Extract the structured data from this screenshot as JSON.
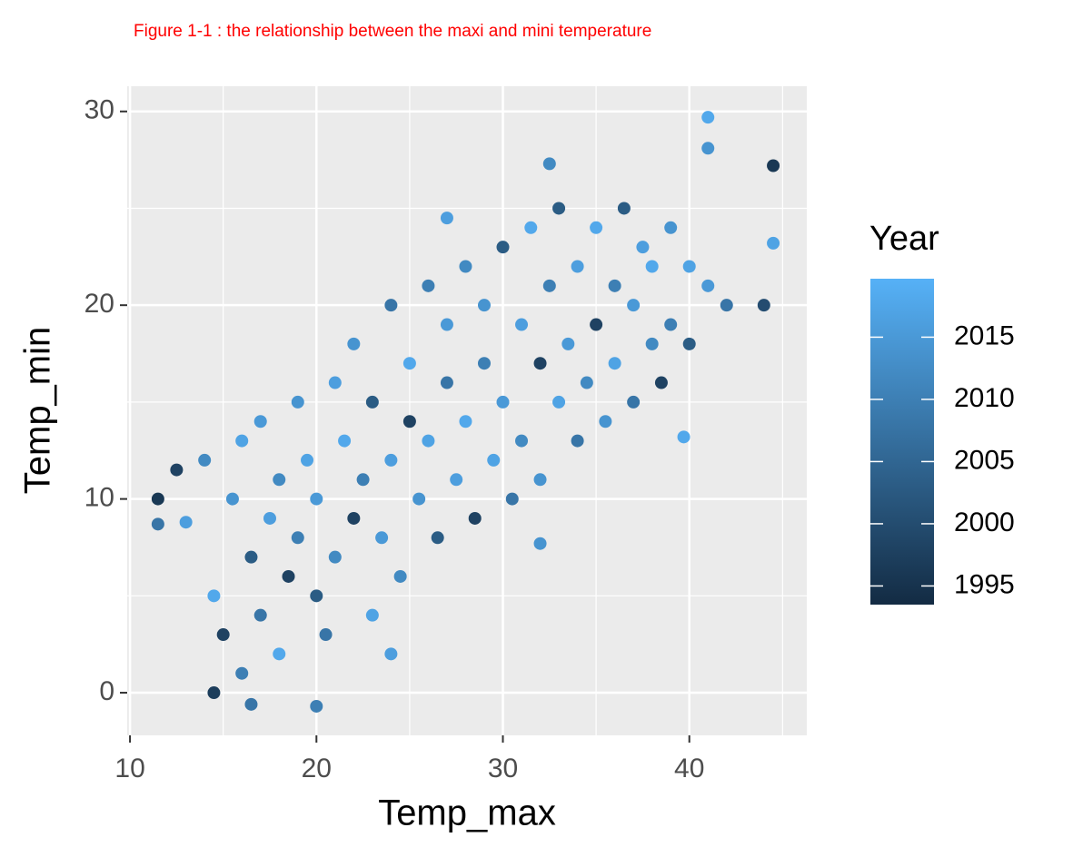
{
  "chart_data": {
    "type": "scatter",
    "title": "Figure 1-1 : the relationship between the maxi and mini temperature",
    "x_label": "Temp_max",
    "y_label": "Temp_min",
    "legend_title": "Year",
    "xlim": [
      9.85,
      46.3
    ],
    "ylim": [
      -2.2,
      31.3
    ],
    "xticks": [
      10,
      20,
      30,
      40
    ],
    "yticks": [
      0,
      10,
      20,
      30
    ],
    "xminor": [
      15,
      25,
      35,
      45
    ],
    "yminor": [
      5,
      15,
      25
    ],
    "grid": true,
    "color_scale": {
      "low": "#132B43",
      "high": "#56B1F7",
      "lim": [
        1993.5,
        2019.7
      ],
      "ticks": [
        1995,
        2000,
        2005,
        2010,
        2015
      ]
    },
    "x": [
      13,
      14,
      14.5,
      15,
      15.5,
      16,
      16,
      16.5,
      17,
      17,
      17.5,
      18,
      18,
      18.5,
      19,
      19,
      19.5,
      20,
      20,
      20.5,
      21,
      21,
      21.5,
      22,
      22,
      22.5,
      23,
      23,
      23.5,
      24,
      24,
      24.5,
      25,
      25,
      25.5,
      26,
      26,
      26.5,
      27,
      27,
      27.5,
      28,
      28,
      28.5,
      29,
      29,
      29.5,
      30,
      30,
      30.5,
      31,
      31,
      31.5,
      32,
      32,
      32.5,
      33,
      33,
      33.5,
      34,
      34,
      34.5,
      35,
      35,
      35.5,
      36,
      36,
      36.5,
      37,
      37,
      37.5,
      38,
      38,
      38.5,
      39,
      39,
      40,
      40,
      41,
      42,
      41,
      44.5,
      41,
      32.5,
      44.5,
      44,
      11.5,
      11.5,
      12.5,
      20,
      16.5,
      39.7,
      32,
      24,
      14.5,
      27
    ],
    "y": [
      8.8,
      12,
      5,
      3,
      10,
      1,
      13,
      7,
      14,
      4,
      9,
      11,
      2,
      6,
      15,
      8,
      12,
      5,
      10,
      3,
      16,
      7,
      13,
      9,
      18,
      11,
      4,
      15,
      8,
      20,
      12,
      6,
      17,
      14,
      10,
      21,
      13,
      8,
      19,
      16,
      11,
      22,
      14,
      9,
      20,
      17,
      12,
      23,
      15,
      10,
      19,
      13,
      24,
      17,
      11,
      21,
      15,
      25,
      18,
      13,
      22,
      16,
      24,
      19,
      14,
      21,
      17,
      25,
      20,
      15,
      23,
      18,
      22,
      16,
      24,
      19,
      22,
      18,
      21,
      20,
      29.7,
      27.2,
      28.1,
      27.3,
      23.2,
      20,
      10,
      8.7,
      11.5,
      -0.7,
      -0.6,
      13.2,
      7.7,
      2,
      0,
      24.5
    ],
    "year": [
      2016,
      2012,
      2018,
      1998,
      2014,
      2010,
      2017,
      2003,
      2015,
      2008,
      2016,
      2012,
      2018,
      1998,
      2014,
      2010,
      2017,
      2003,
      2015,
      2008,
      2016,
      2012,
      2018,
      1998,
      2014,
      2010,
      2017,
      2003,
      2015,
      2008,
      2016,
      2012,
      2018,
      1998,
      2014,
      2010,
      2017,
      2003,
      2015,
      2008,
      2016,
      2012,
      2018,
      1998,
      2014,
      2010,
      2017,
      2003,
      2015,
      2008,
      2016,
      2012,
      2018,
      1998,
      2014,
      2010,
      2017,
      2003,
      2015,
      2008,
      2016,
      2012,
      2018,
      1998,
      2014,
      2010,
      2017,
      2003,
      2015,
      2008,
      2016,
      2012,
      2018,
      1998,
      2014,
      2010,
      2017,
      2003,
      2015,
      2008,
      2018,
      1996,
      2014,
      2012,
      2017,
      2000,
      1996,
      2008,
      1998,
      2010,
      2008,
      2018,
      2014,
      2016,
      1997,
      2016
    ]
  }
}
